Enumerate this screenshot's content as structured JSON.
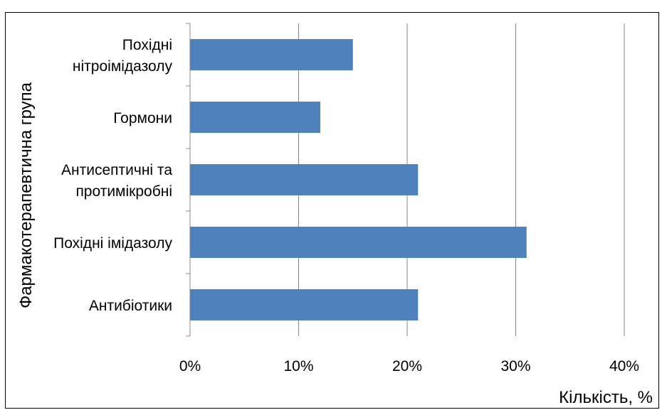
{
  "chart_data": {
    "type": "bar",
    "orientation": "horizontal",
    "categories": [
      "Похідні нітроімідазолу",
      "Гормони",
      "Антисептичні та протимікробні",
      "Похідні імідазолу",
      "Антибіотики"
    ],
    "category_lines": [
      [
        "Похідні",
        "нітроімідазолу"
      ],
      [
        "Гормони"
      ],
      [
        "Антисептичні та",
        "протимікробні"
      ],
      [
        "Похідні імідазолу"
      ],
      [
        "Антибіотики"
      ]
    ],
    "values": [
      15,
      12,
      21,
      31,
      21
    ],
    "xlim": [
      0,
      40
    ],
    "xticks": [
      "0%",
      "10%",
      "20%",
      "30%",
      "40%"
    ],
    "xlabel": "Кількість, %",
    "ylabel": "Фармакотерапевтична група",
    "grid": "vertical major gridlines",
    "legend": "none",
    "bar_color": "#4F81BD"
  }
}
